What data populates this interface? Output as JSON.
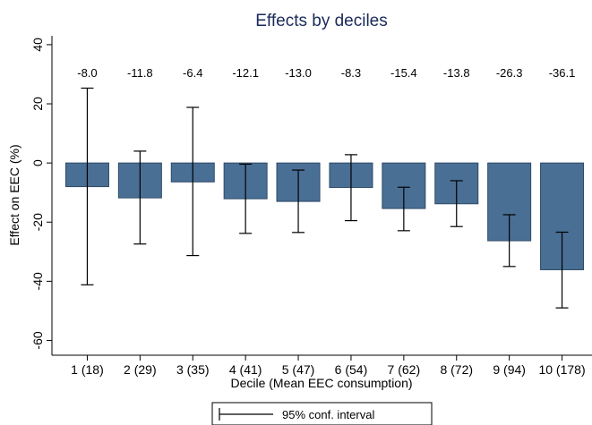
{
  "chart_data": {
    "type": "bar",
    "title": "Effects by deciles",
    "xlabel": "Decile (Mean EEC consumption)",
    "ylabel": "Effect on EEC (%)",
    "categories": [
      "1 (18)",
      "2 (29)",
      "3 (35)",
      "4 (41)",
      "5 (47)",
      "6 (54)",
      "7 (62)",
      "8 (72)",
      "9 (94)",
      "10 (178)"
    ],
    "values": [
      -8.0,
      -11.8,
      -6.4,
      -12.1,
      -13.0,
      -8.3,
      -15.4,
      -13.8,
      -26.3,
      -36.1
    ],
    "data_labels": [
      "-8.0",
      "-11.8",
      "-6.4",
      "-12.1",
      "-13.0",
      "-8.3",
      "-15.4",
      "-13.8",
      "-26.3",
      "-36.1"
    ],
    "ci_lower": [
      -41.2,
      -27.4,
      -31.3,
      -23.8,
      -23.5,
      -19.5,
      -22.9,
      -21.5,
      -35.0,
      -49.0
    ],
    "ci_upper": [
      25.3,
      4.0,
      18.8,
      -0.4,
      -2.4,
      2.8,
      -8.2,
      -6.0,
      -17.5,
      -23.4
    ],
    "ylim": [
      -65,
      43
    ],
    "yticks": [
      -60,
      -40,
      -20,
      0,
      20,
      40
    ],
    "legend": {
      "label": "95% conf. interval",
      "placement": "bottom"
    },
    "grid": false,
    "colors": {
      "bar": "#4a6f95",
      "bar_edge": "#2e4a66",
      "title": "#1a2a5a",
      "ci": "#000000"
    }
  }
}
